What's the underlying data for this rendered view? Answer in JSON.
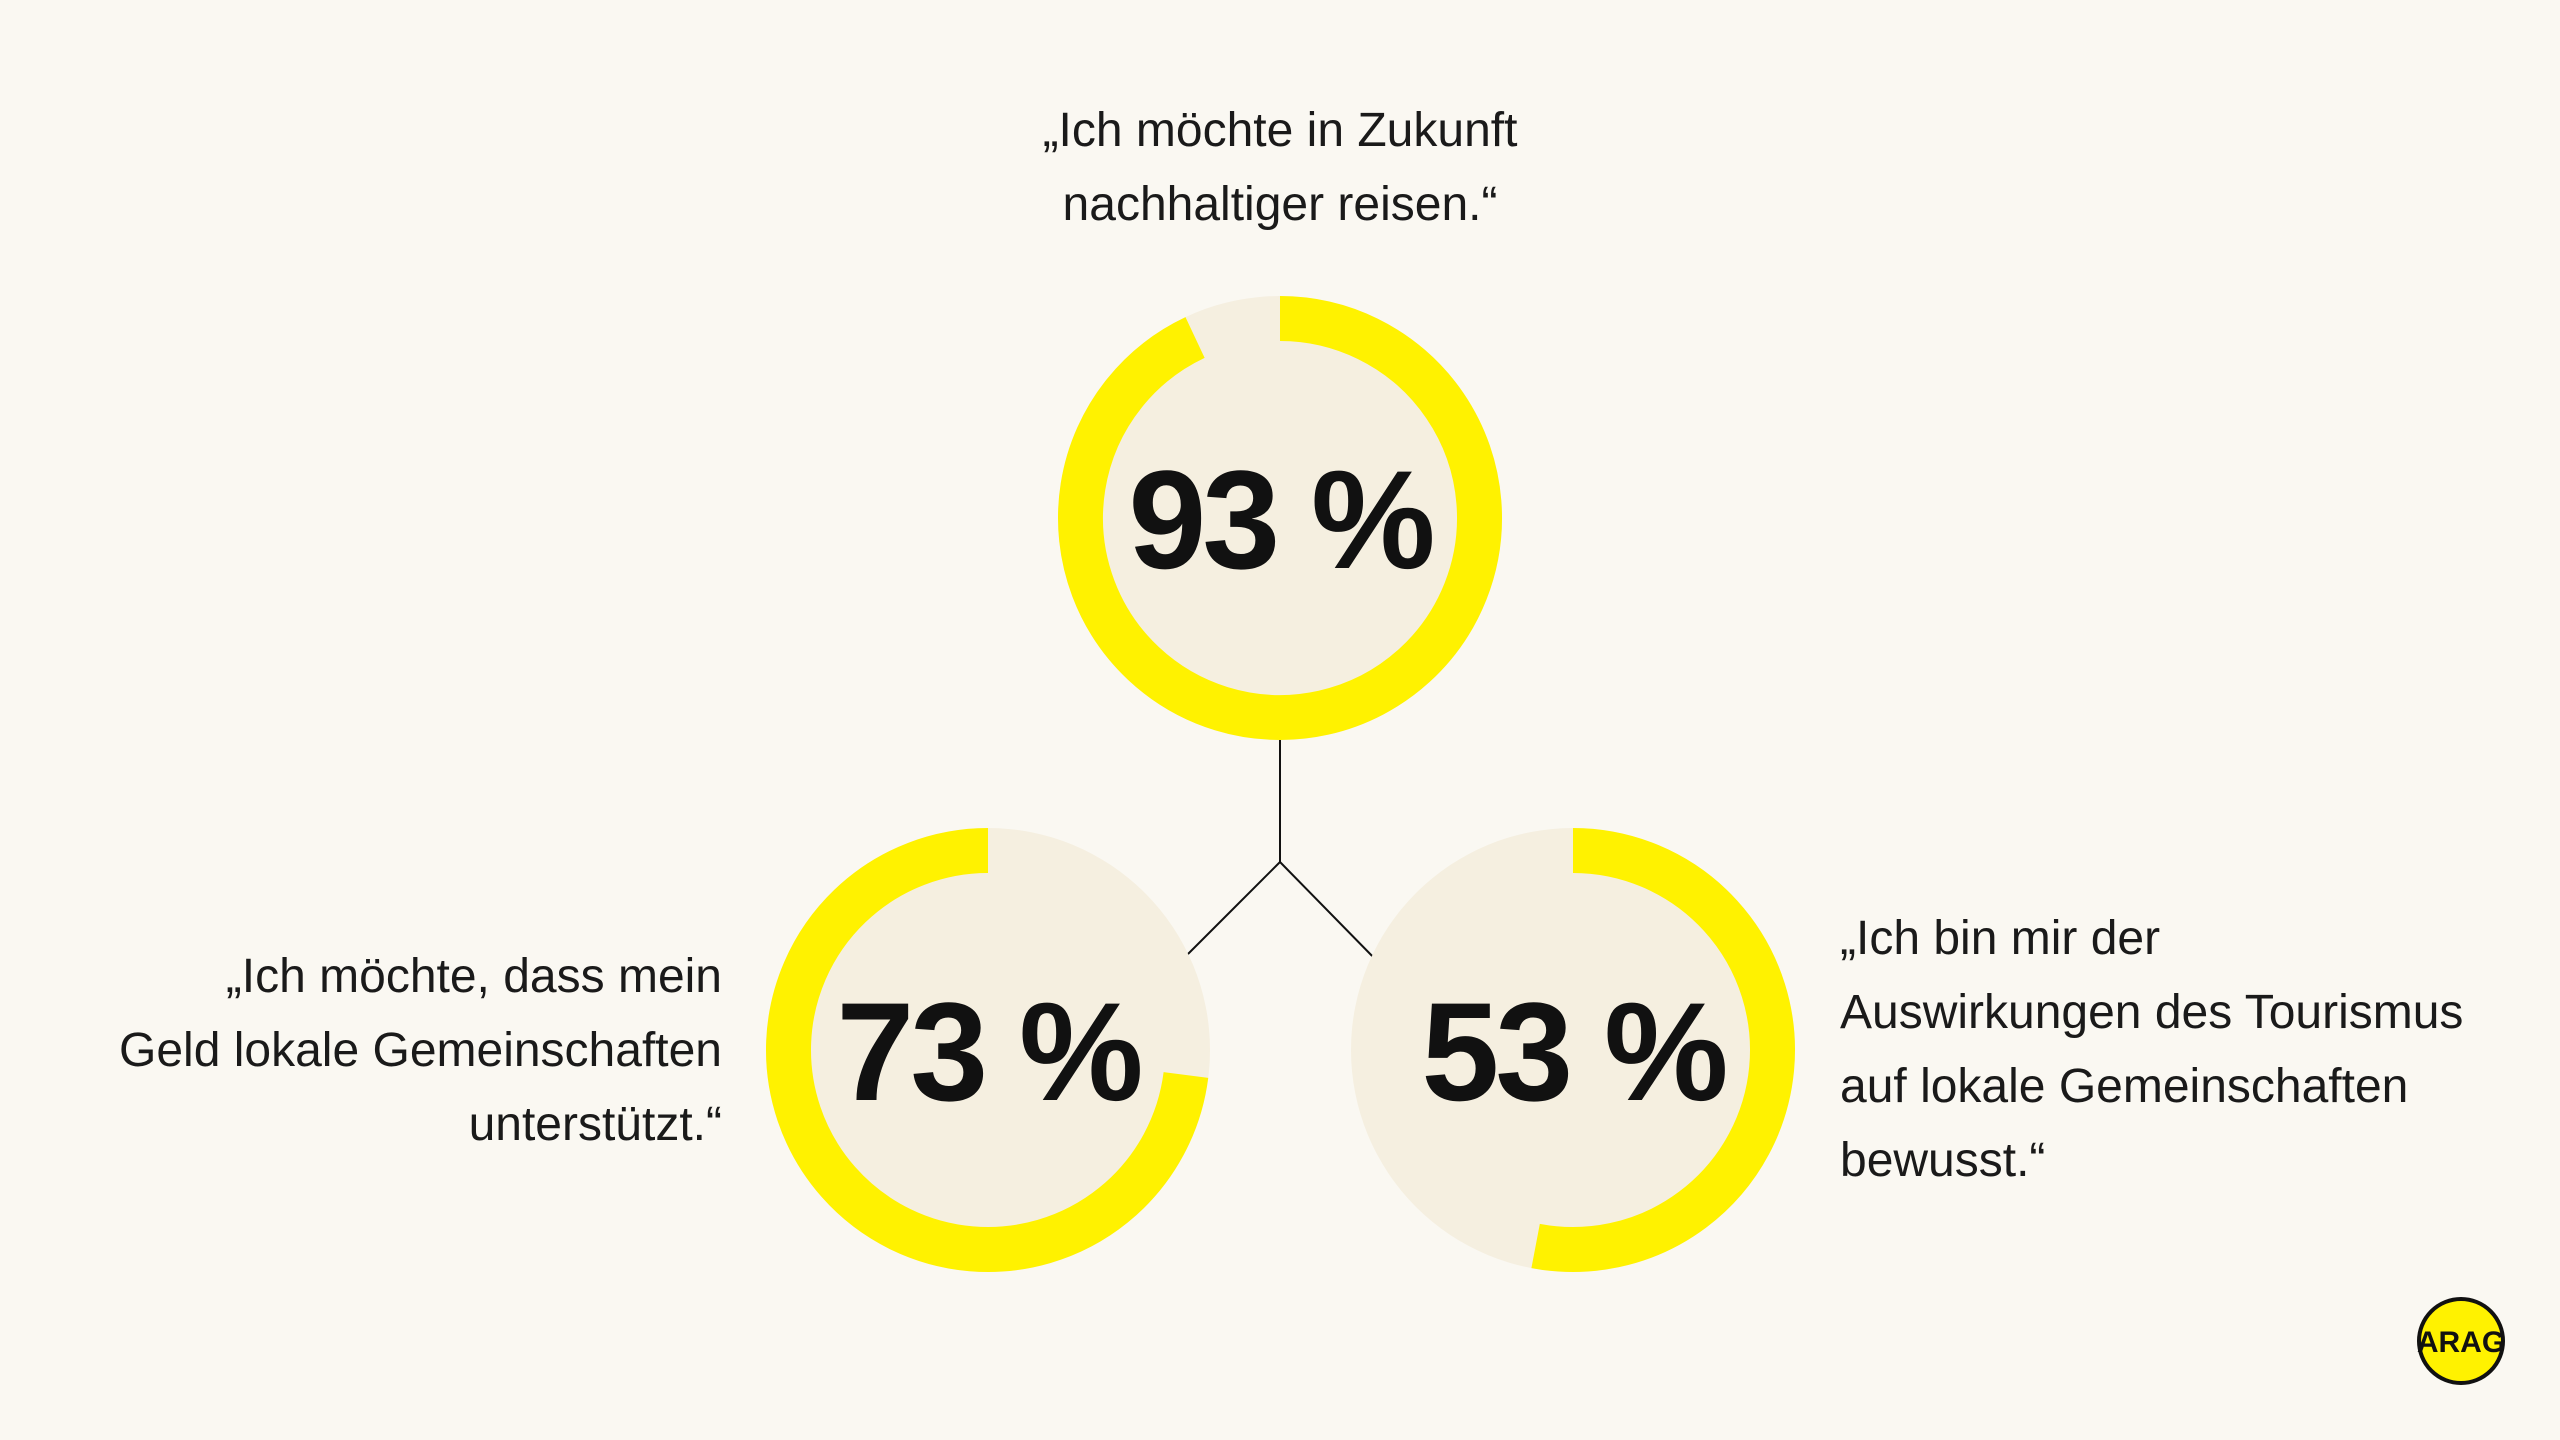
{
  "chart_data": {
    "type": "donut",
    "max": 100,
    "items": [
      {
        "value": 93,
        "label": "93 %",
        "quote": [
          "„Ich möchte in Zukunft",
          "nachhaltiger reisen.“"
        ],
        "direction": "clockwise"
      },
      {
        "value": 73,
        "label": "73 %",
        "quote": [
          "„Ich möchte, dass mein",
          "Geld lokale Gemeinschaften",
          "unterstützt.“"
        ],
        "direction": "counterclockwise"
      },
      {
        "value": 53,
        "label": "53 %",
        "quote": [
          "„Ich bin mir der",
          "Auswirkungen des Tourismus",
          "auf lokale Gemeinschaften",
          "bewusst.“"
        ],
        "direction": "clockwise"
      }
    ],
    "colors": {
      "fill": "#fff200",
      "track": "#f5efe0",
      "background": "#faf8f2",
      "text": "#111111"
    }
  },
  "logo": {
    "text": "ARAG",
    "color": "#fff200"
  }
}
